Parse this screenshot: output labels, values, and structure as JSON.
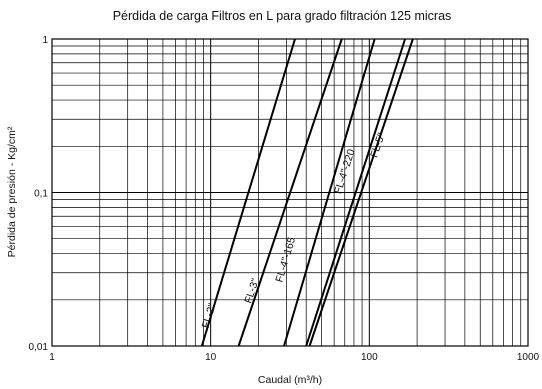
{
  "chart_data": {
    "type": "line",
    "title": "Pérdida de carga Filtros en L para grado filtración 125 micras",
    "xlabel": "Caudal (m³/h)",
    "ylabel": "Pérdida de presión - Kg/cm²",
    "xscale": "log",
    "yscale": "log",
    "xlim": [
      1,
      1000
    ],
    "ylim": [
      0.01,
      1
    ],
    "grid": true,
    "x_ticks": [
      {
        "value": 1,
        "label": "1"
      },
      {
        "value": 10,
        "label": "10"
      },
      {
        "value": 100,
        "label": "100"
      },
      {
        "value": 1000,
        "label": "1000"
      }
    ],
    "y_ticks": [
      {
        "value": 0.01,
        "label": "0,01"
      },
      {
        "value": 0.1,
        "label": "0,1"
      },
      {
        "value": 1,
        "label": "1"
      }
    ],
    "series": [
      {
        "name": "FL-2\"",
        "x": [
          8.8,
          34
        ],
        "y": [
          0.01,
          1
        ]
      },
      {
        "name": "FL-3\"",
        "x": [
          15,
          67
        ],
        "y": [
          0.01,
          1
        ]
      },
      {
        "name": "FL-4\"-165",
        "x": [
          29,
          108
        ],
        "y": [
          0.01,
          1
        ]
      },
      {
        "name": "FL-4\"-220",
        "x": [
          40,
          168
        ],
        "y": [
          0.01,
          1
        ]
      },
      {
        "name": "FL-5\"",
        "x": [
          42,
          188
        ],
        "y": [
          0.01,
          1
        ]
      }
    ],
    "labels": [
      {
        "series": 0,
        "text": "FL-2\"",
        "at": [
          10.2,
          0.0155
        ]
      },
      {
        "series": 1,
        "text": "FL-3\"",
        "at": [
          19,
          0.0225
        ]
      },
      {
        "series": 2,
        "text": "FL-4\"-165",
        "at": [
          31,
          0.036
        ]
      },
      {
        "series": 3,
        "text": "FL-4\"-220",
        "at": [
          73,
          0.135
        ]
      },
      {
        "series": 4,
        "text": "FL-5\"",
        "at": [
          118,
          0.2
        ]
      }
    ]
  }
}
